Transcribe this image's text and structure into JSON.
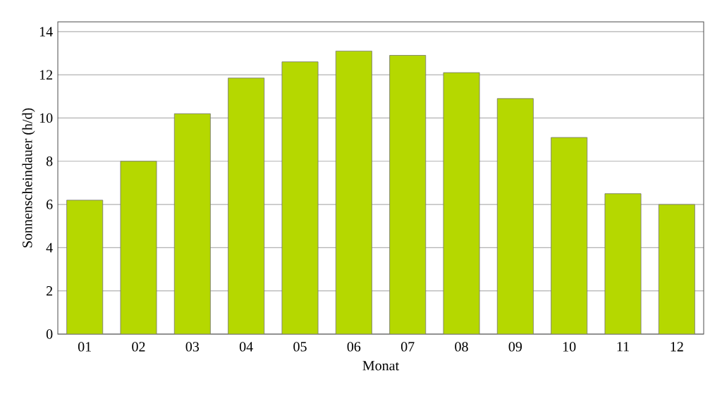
{
  "chart_data": {
    "type": "bar",
    "xlabel": "Monat",
    "ylabel": "Sonnenscheindauer (h/d)",
    "categories": [
      "01",
      "02",
      "03",
      "04",
      "05",
      "06",
      "07",
      "08",
      "09",
      "10",
      "11",
      "12"
    ],
    "values": [
      6.2,
      8.0,
      10.2,
      11.85,
      12.6,
      13.1,
      12.9,
      12.1,
      10.9,
      9.1,
      6.5,
      6.0
    ],
    "color": "#b5d800",
    "ylim": [
      0,
      14.45
    ],
    "yticks": [
      0,
      2,
      4,
      6,
      8,
      10,
      12,
      14
    ],
    "grid": "y"
  }
}
